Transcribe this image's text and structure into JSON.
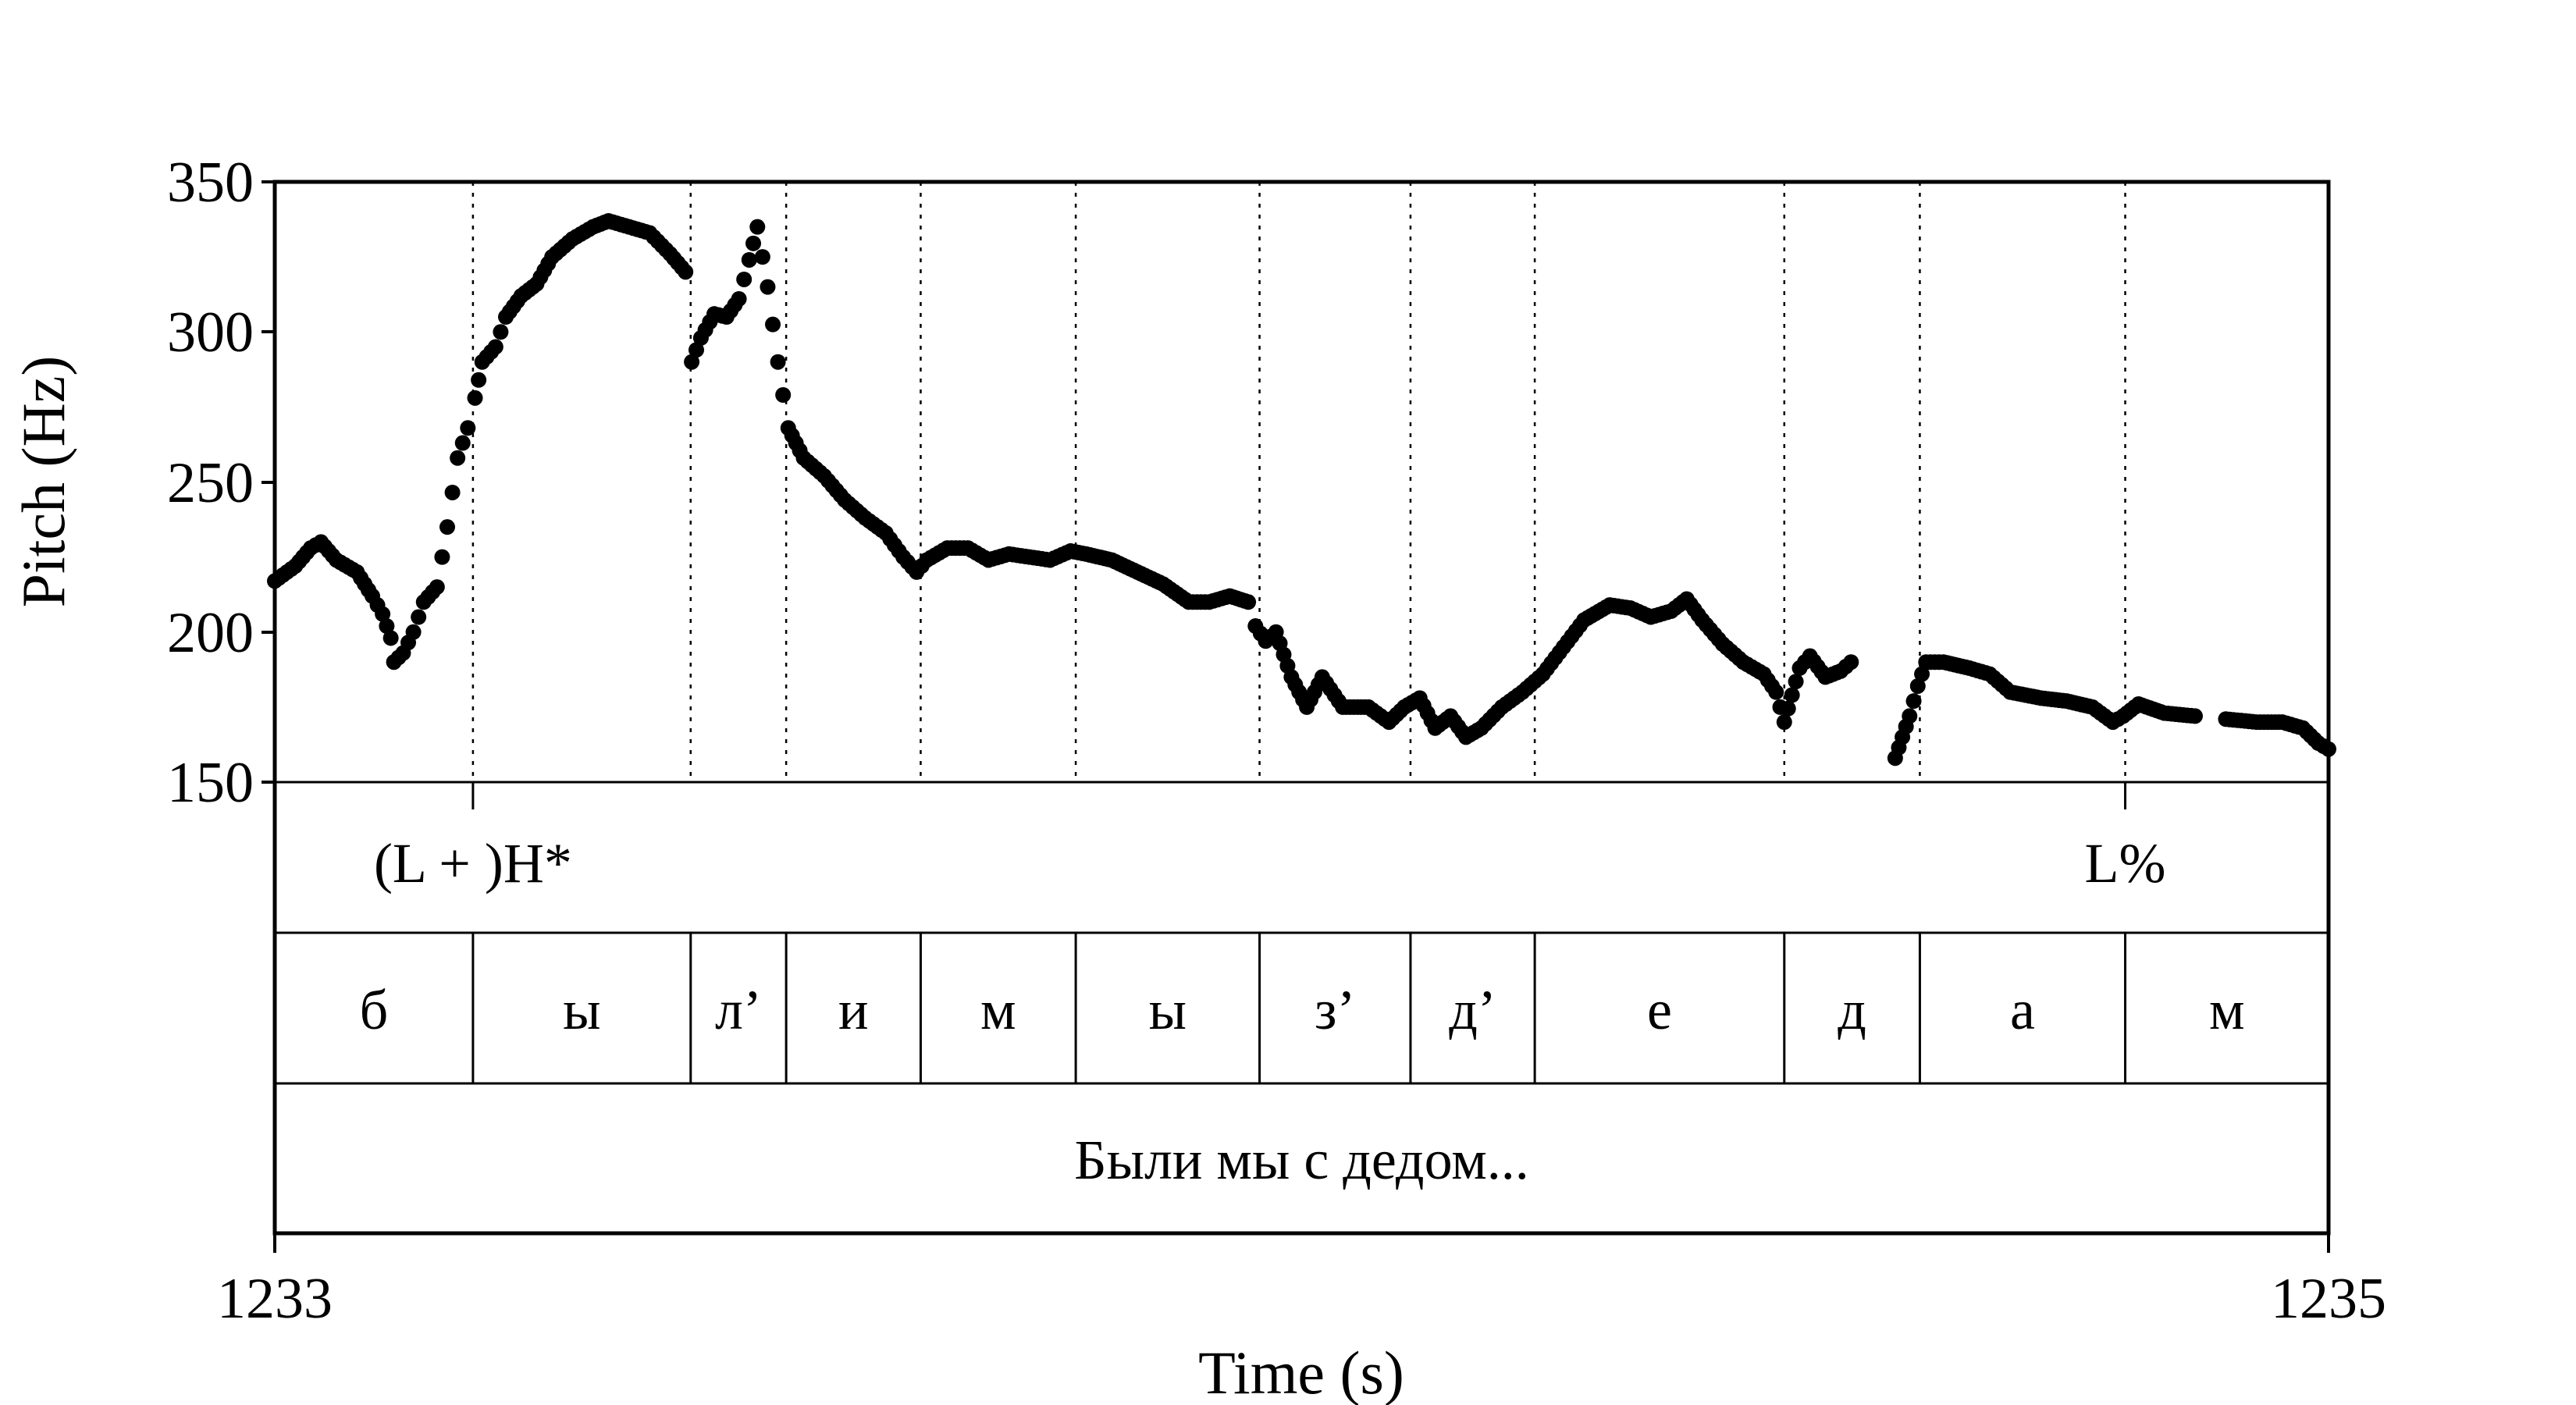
{
  "chart_data": {
    "type": "scatter",
    "xlabel": "Time (s)",
    "ylabel": "Pitch (Hz)",
    "xlim": [
      1233,
      1235
    ],
    "ylim": [
      150,
      350
    ],
    "x_ticks": [
      "1233",
      "1235"
    ],
    "y_ticks": [
      "150",
      "200",
      "250",
      "300",
      "350"
    ],
    "segment_boundaries": [
      1233.193,
      1233.405,
      1233.498,
      1233.629,
      1233.78,
      1233.959,
      1234.106,
      1234.227,
      1234.47,
      1234.602,
      1234.802,
      1235
    ],
    "tone_tier": [
      {
        "label": "(L + )H*",
        "time": 1233.193
      },
      {
        "label": "L%",
        "time": 1234.802
      }
    ],
    "segment_tier": [
      {
        "label": "б",
        "start": 1233.0,
        "end": 1233.193
      },
      {
        "label": "ы",
        "start": 1233.193,
        "end": 1233.405
      },
      {
        "label": "л’",
        "start": 1233.405,
        "end": 1233.498
      },
      {
        "label": "и",
        "start": 1233.498,
        "end": 1233.629
      },
      {
        "label": "м",
        "start": 1233.629,
        "end": 1233.78
      },
      {
        "label": "ы",
        "start": 1233.78,
        "end": 1233.959
      },
      {
        "label": "з’",
        "start": 1233.959,
        "end": 1234.106
      },
      {
        "label": "д’",
        "start": 1234.106,
        "end": 1234.227
      },
      {
        "label": "е",
        "start": 1234.227,
        "end": 1234.47
      },
      {
        "label": "д",
        "start": 1234.47,
        "end": 1234.602
      },
      {
        "label": "а",
        "start": 1234.602,
        "end": 1234.802
      },
      {
        "label": "м",
        "start": 1234.802,
        "end": 1235.0
      }
    ],
    "word_tier": [
      {
        "label": "Были мы с дедом...",
        "start": 1233.0,
        "end": 1235.0
      }
    ],
    "pitch_contour": [
      [
        1233.0,
        217
      ],
      [
        1233.02,
        222
      ],
      [
        1233.035,
        228
      ],
      [
        1233.045,
        230
      ],
      [
        1233.06,
        224
      ],
      [
        1233.08,
        220
      ],
      [
        1233.095,
        212
      ],
      [
        1233.105,
        206
      ],
      [
        1233.113,
        198
      ],
      [
        1233.116,
        190
      ],
      [
        1233.125,
        193
      ],
      [
        1233.135,
        200
      ],
      [
        1233.145,
        210
      ],
      [
        1233.158,
        215
      ],
      [
        1233.168,
        235
      ],
      [
        1233.178,
        258
      ],
      [
        1233.188,
        268
      ],
      [
        1233.195,
        278
      ],
      [
        1233.202,
        290
      ],
      [
        1233.215,
        295
      ],
      [
        1233.225,
        305
      ],
      [
        1233.24,
        312
      ],
      [
        1233.255,
        316
      ],
      [
        1233.27,
        325
      ],
      [
        1233.29,
        331
      ],
      [
        1233.31,
        335
      ],
      [
        1233.325,
        337
      ],
      [
        1233.345,
        335
      ],
      [
        1233.365,
        333
      ],
      [
        1233.385,
        326
      ],
      [
        1233.4,
        320
      ],
      [
        1233.406,
        290
      ],
      [
        1233.415,
        298
      ],
      [
        1233.428,
        306
      ],
      [
        1233.44,
        305
      ],
      [
        1233.452,
        311
      ],
      [
        1233.462,
        324
      ],
      [
        1233.47,
        335
      ],
      [
        1233.48,
        315
      ],
      [
        1233.49,
        290
      ],
      [
        1233.5,
        268
      ],
      [
        1233.515,
        258
      ],
      [
        1233.535,
        252
      ],
      [
        1233.555,
        244
      ],
      [
        1233.575,
        238
      ],
      [
        1233.595,
        233
      ],
      [
        1233.612,
        225
      ],
      [
        1233.625,
        220
      ],
      [
        1233.635,
        224
      ],
      [
        1233.655,
        228
      ],
      [
        1233.675,
        228
      ],
      [
        1233.695,
        224
      ],
      [
        1233.715,
        226
      ],
      [
        1233.735,
        225
      ],
      [
        1233.755,
        224
      ],
      [
        1233.775,
        227
      ],
      [
        1233.79,
        226
      ],
      [
        1233.815,
        224
      ],
      [
        1233.84,
        220
      ],
      [
        1233.865,
        216
      ],
      [
        1233.89,
        210
      ],
      [
        1233.91,
        210
      ],
      [
        1233.93,
        212
      ],
      [
        1233.948,
        210
      ],
      [
        1233.955,
        202
      ],
      [
        1233.965,
        197
      ],
      [
        1233.975,
        200
      ],
      [
        1233.99,
        185
      ],
      [
        1234.005,
        175
      ],
      [
        1234.02,
        185
      ],
      [
        1234.04,
        175
      ],
      [
        1234.065,
        175
      ],
      [
        1234.085,
        170
      ],
      [
        1234.1,
        175
      ],
      [
        1234.115,
        178
      ],
      [
        1234.13,
        168
      ],
      [
        1234.145,
        172
      ],
      [
        1234.16,
        165
      ],
      [
        1234.175,
        168
      ],
      [
        1234.195,
        175
      ],
      [
        1234.215,
        180
      ],
      [
        1234.235,
        186
      ],
      [
        1234.255,
        195
      ],
      [
        1234.275,
        204
      ],
      [
        1234.3,
        209
      ],
      [
        1234.32,
        208
      ],
      [
        1234.34,
        205
      ],
      [
        1234.36,
        207
      ],
      [
        1234.375,
        211
      ],
      [
        1234.39,
        204
      ],
      [
        1234.41,
        196
      ],
      [
        1234.43,
        190
      ],
      [
        1234.45,
        186
      ],
      [
        1234.462,
        180
      ],
      [
        1234.47,
        170
      ],
      [
        1234.485,
        188
      ],
      [
        1234.495,
        192
      ],
      [
        1234.51,
        185
      ],
      [
        1234.525,
        187
      ],
      [
        1234.535,
        190
      ],
      [
        1234.578,
        158
      ],
      [
        1234.585,
        165
      ],
      [
        1234.592,
        172
      ],
      [
        1234.6,
        182
      ],
      [
        1234.608,
        190
      ],
      [
        1234.625,
        190
      ],
      [
        1234.65,
        188
      ],
      [
        1234.67,
        186
      ],
      [
        1234.69,
        180
      ],
      [
        1234.72,
        178
      ],
      [
        1234.745,
        177
      ],
      [
        1234.77,
        175
      ],
      [
        1234.79,
        170
      ],
      [
        1234.8,
        172
      ],
      [
        1234.815,
        176
      ],
      [
        1234.84,
        173
      ],
      [
        1234.87,
        172
      ],
      [
        1234.9,
        171
      ],
      [
        1234.93,
        170
      ],
      [
        1234.955,
        170
      ],
      [
        1234.975,
        168
      ],
      [
        1234.99,
        163
      ],
      [
        1235.0,
        161
      ]
    ]
  }
}
